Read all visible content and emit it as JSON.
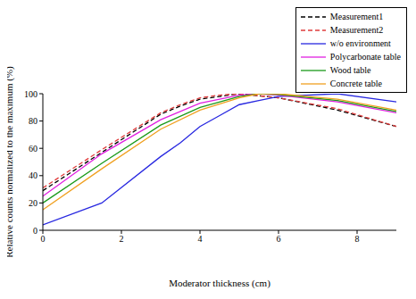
{
  "chart_data": {
    "type": "line",
    "x_label": "Moderator thickness (cm)",
    "y_label": "Relative counts normalized to the maximum (%)",
    "xlim": [
      0,
      9
    ],
    "xticks": [
      0,
      2,
      4,
      6,
      8
    ],
    "ylim": [
      0,
      100
    ],
    "yticks": [
      0,
      20,
      40,
      60,
      80,
      100
    ],
    "legend": "upper right",
    "grid": false,
    "series": [
      {
        "name": "Measurement1",
        "color": "#000000",
        "line_style": "dashed",
        "x": [
          0,
          1.5,
          3,
          3.5,
          4,
          4.5,
          5,
          6,
          7.5,
          9
        ],
        "values": [
          29,
          57,
          85,
          91,
          96,
          98,
          100,
          97,
          88,
          76
        ]
      },
      {
        "name": "Measurement2",
        "color": "#e03c3c",
        "line_style": "dashed",
        "x": [
          0,
          1.5,
          3,
          3.5,
          4,
          4.5,
          5,
          6,
          7.5,
          9
        ],
        "values": [
          31,
          59,
          86,
          92,
          97,
          99,
          100,
          97,
          89,
          76
        ]
      },
      {
        "name": "w/o environment",
        "color": "#2828e0",
        "line_style": "solid",
        "x": [
          0,
          1.5,
          3,
          3.5,
          4,
          4.5,
          5,
          5.5,
          6,
          7.5,
          9
        ],
        "values": [
          4,
          20,
          54,
          64,
          76,
          84,
          92,
          95,
          98,
          100,
          94
        ]
      },
      {
        "name": "Polycarbonate table",
        "color": "#e020e0",
        "line_style": "solid",
        "x": [
          0,
          1.5,
          3,
          4,
          5,
          5.5,
          6,
          7.5,
          9
        ],
        "values": [
          25,
          56,
          81,
          93,
          99,
          100,
          99,
          94,
          86
        ]
      },
      {
        "name": "Wood table",
        "color": "#1a9a1a",
        "line_style": "solid",
        "x": [
          0,
          1.5,
          3,
          4,
          5,
          5.5,
          6,
          7.5,
          9
        ],
        "values": [
          20,
          49,
          77,
          90,
          98,
          100,
          99.5,
          95,
          87
        ]
      },
      {
        "name": "Concrete table",
        "color": "#f0a020",
        "line_style": "solid",
        "x": [
          0,
          1.5,
          3,
          4,
          5,
          5.5,
          6,
          7.5,
          9
        ],
        "values": [
          15,
          45,
          74,
          88,
          97,
          100,
          100,
          96,
          88
        ]
      }
    ]
  }
}
